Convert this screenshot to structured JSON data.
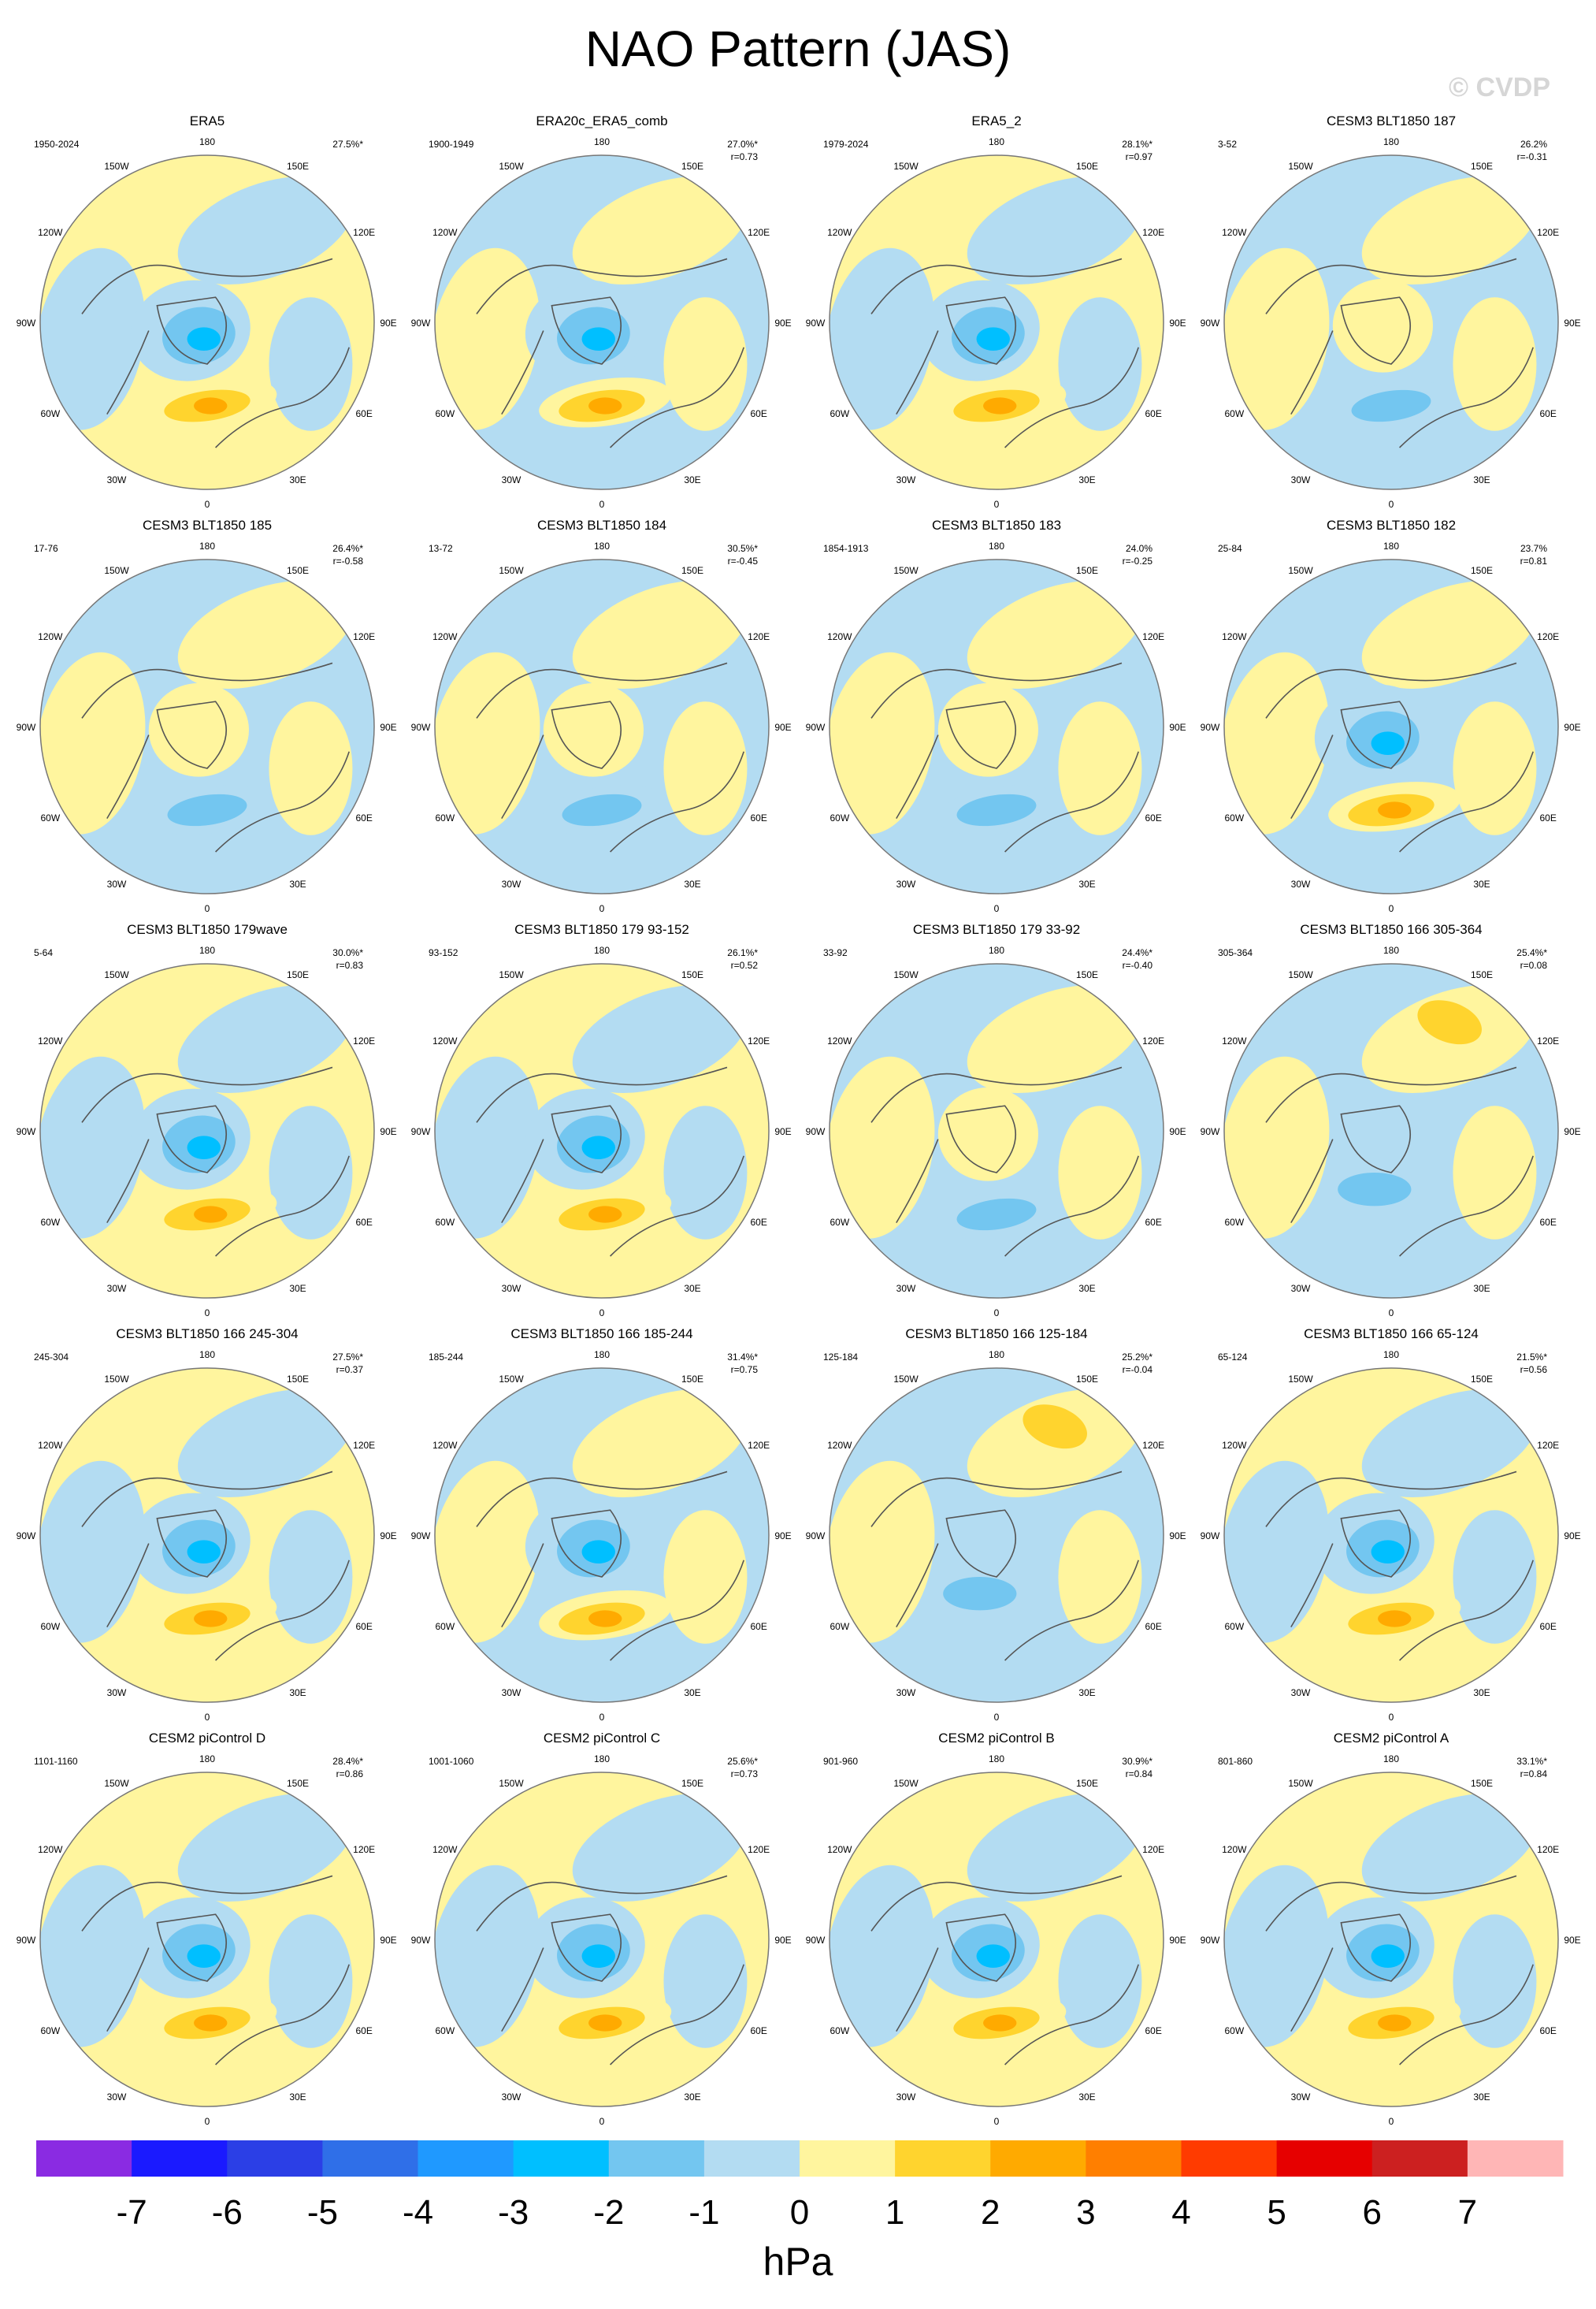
{
  "title": "NAO Pattern (JAS)",
  "watermark": "© CVDP",
  "chart_data": {
    "type": "polar-contour-map",
    "projection": "North polar stereographic",
    "variable": "sea level pressure regression",
    "lon_labels": [
      "180",
      "150E",
      "120E",
      "90E",
      "60E",
      "30E",
      "0",
      "30W",
      "60W",
      "90W",
      "120W",
      "150W"
    ],
    "colorbar": {
      "unit": "hPa",
      "levels": [
        "-7",
        "-6",
        "-5",
        "-4",
        "-3",
        "-2",
        "-1",
        "0",
        "1",
        "2",
        "3",
        "4",
        "5",
        "6",
        "7"
      ],
      "colors": [
        "#8a2be2",
        "#1a1aff",
        "#2b3fe6",
        "#2f6fe8",
        "#1f99ff",
        "#00bfff",
        "#73c6f0",
        "#b3dcf2",
        "#fff59e",
        "#ffd42e",
        "#ffaa00",
        "#ff7f00",
        "#ff3b00",
        "#e60000",
        "#cc2020",
        "#ffb6b6"
      ]
    },
    "panels": [
      {
        "title": "ERA5",
        "period": "1950-2024",
        "pct": "27.5%*",
        "r": "",
        "pattern": "ref",
        "tint": "yellow"
      },
      {
        "title": "ERA20c_ERA5_comb",
        "period": "1900-1949",
        "pct": "27.0%*",
        "r": "r=0.73",
        "pattern": "ref",
        "tint": "blue"
      },
      {
        "title": "ERA5_2",
        "period": "1979-2024",
        "pct": "28.1%*",
        "r": "r=0.97",
        "pattern": "ref",
        "tint": "yellow"
      },
      {
        "title": "CESM3 BLT1850 187",
        "period": "3-52",
        "pct": "26.2%",
        "r": "r=-0.31",
        "pattern": "inv",
        "tint": "blue"
      },
      {
        "title": "CESM3 BLT1850 185",
        "period": "17-76",
        "pct": "26.4%*",
        "r": "r=-0.58",
        "pattern": "inv",
        "tint": "blue"
      },
      {
        "title": "CESM3 BLT1850 184",
        "period": "13-72",
        "pct": "30.5%*",
        "r": "r=-0.45",
        "pattern": "inv",
        "tint": "blue"
      },
      {
        "title": "CESM3 BLT1850 183",
        "period": "1854-1913",
        "pct": "24.0%",
        "r": "r=-0.25",
        "pattern": "inv",
        "tint": "blue"
      },
      {
        "title": "CESM3 BLT1850 182",
        "period": "25-84",
        "pct": "23.7%",
        "r": "r=0.81",
        "pattern": "ref",
        "tint": "blue"
      },
      {
        "title": "CESM3 BLT1850 179wave",
        "period": "5-64",
        "pct": "30.0%*",
        "r": "r=0.83",
        "pattern": "ref",
        "tint": "yellow"
      },
      {
        "title": "CESM3 BLT1850 179 93-152",
        "period": "93-152",
        "pct": "26.1%*",
        "r": "r=0.52",
        "pattern": "ref",
        "tint": "yellow"
      },
      {
        "title": "CESM3 BLT1850 179 33-92",
        "period": "33-92",
        "pct": "24.4%*",
        "r": "r=-0.40",
        "pattern": "inv",
        "tint": "blue"
      },
      {
        "title": "CESM3 BLT1850 166 305-364",
        "period": "305-364",
        "pct": "25.4%*",
        "r": "r=0.08",
        "pattern": "weak",
        "tint": "blue"
      },
      {
        "title": "CESM3 BLT1850 166 245-304",
        "period": "245-304",
        "pct": "27.5%*",
        "r": "r=0.37",
        "pattern": "ref",
        "tint": "yellow"
      },
      {
        "title": "CESM3 BLT1850 166 185-244",
        "period": "185-244",
        "pct": "31.4%*",
        "r": "r=0.75",
        "pattern": "ref",
        "tint": "blue"
      },
      {
        "title": "CESM3 BLT1850 166 125-184",
        "period": "125-184",
        "pct": "25.2%*",
        "r": "r=-0.04",
        "pattern": "weak",
        "tint": "blue"
      },
      {
        "title": "CESM3 BLT1850 166 65-124",
        "period": "65-124",
        "pct": "21.5%*",
        "r": "r=0.56",
        "pattern": "ref",
        "tint": "yellow"
      },
      {
        "title": "CESM2 piControl D",
        "period": "1101-1160",
        "pct": "28.4%*",
        "r": "r=0.86",
        "pattern": "ref",
        "tint": "yellow"
      },
      {
        "title": "CESM2 piControl C",
        "period": "1001-1060",
        "pct": "25.6%*",
        "r": "r=0.73",
        "pattern": "ref",
        "tint": "yellow"
      },
      {
        "title": "CESM2 piControl B",
        "period": "901-960",
        "pct": "30.9%*",
        "r": "r=0.84",
        "pattern": "ref",
        "tint": "yellow"
      },
      {
        "title": "CESM2 piControl A",
        "period": "801-860",
        "pct": "33.1%*",
        "r": "r=0.84",
        "pattern": "ref",
        "tint": "yellow"
      }
    ]
  }
}
